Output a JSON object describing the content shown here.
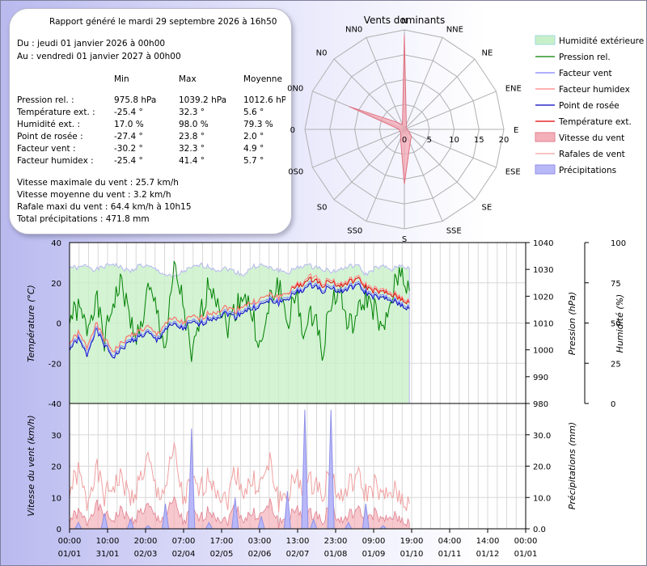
{
  "report": {
    "title": "Rapport généré le mardi 29 septembre 2026 à 16h50",
    "period_from": "Du : jeudi 01 janvier 2026 à 00h00",
    "period_to": "Au : vendredi 01 janvier 2027 à 00h00",
    "stat_headers": [
      "Min",
      "Max",
      "Moyenne"
    ],
    "stats": [
      {
        "label": "Pression rel. :",
        "min": "975.8 hPa",
        "max": "1039.2 hPa",
        "avg": "1012.6 hPa"
      },
      {
        "label": "Température ext. :",
        "min": "-25.4 °",
        "max": "32.3 °",
        "avg": "5.6 °"
      },
      {
        "label": "Humidité ext. :",
        "min": "17.0 %",
        "max": "98.0 %",
        "avg": "79.3 %"
      },
      {
        "label": "Point de rosée :",
        "min": "-27.4 °",
        "max": "23.8 °",
        "avg": "2.0 °"
      },
      {
        "label": "Facteur vent :",
        "min": "-30.2 °",
        "max": "32.3 °",
        "avg": "4.9 °"
      },
      {
        "label": "Facteur humidex :",
        "min": "-25.4 °",
        "max": "41.4 °",
        "avg": "5.7 °"
      }
    ],
    "wind_lines": [
      "Vitesse maximale du vent : 25.7 km/h",
      "Vitesse moyenne du vent : 3.2 km/h",
      "Rafale maxi du vent : 64.4 km/h à 10h15",
      "Total précipitations : 471.8 mm"
    ]
  },
  "legend": [
    {
      "label": "Humidité extérieure",
      "kind": "area",
      "color": "#c8f0c8",
      "stroke": "#a0d8e0"
    },
    {
      "label": "Pression rel.",
      "kind": "line",
      "color": "#008000"
    },
    {
      "label": "Facteur vent",
      "kind": "line",
      "color": "#8080ff"
    },
    {
      "label": "Facteur humidex",
      "kind": "line",
      "color": "#ff8080"
    },
    {
      "label": "Point de rosée",
      "kind": "line",
      "color": "#0000c0"
    },
    {
      "label": "Température ext.",
      "kind": "line",
      "color": "#e00000"
    },
    {
      "label": "Vitesse du vent",
      "kind": "area",
      "color": "#f4b0b8",
      "stroke": "#e08090"
    },
    {
      "label": "Rafales de vent",
      "kind": "line",
      "color": "#f0a0a0"
    },
    {
      "label": "Précipitations",
      "kind": "area",
      "color": "#b8b8f8",
      "stroke": "#9090e8"
    }
  ],
  "chart_data": [
    {
      "type": "radar",
      "title": "Vents dominants",
      "directions": [
        "N",
        "NNE",
        "NE",
        "ENE",
        "E",
        "ESE",
        "SE",
        "SSE",
        "S",
        "SS0",
        "S0",
        "0S0",
        "0",
        "0N0",
        "N0",
        "NN0"
      ],
      "rlim": [
        0,
        20
      ],
      "rticks": [
        "0",
        "5",
        "10",
        "15",
        "20"
      ],
      "values": [
        19,
        1,
        0.5,
        0.5,
        0.5,
        1,
        2,
        3,
        11,
        2,
        1,
        1,
        1,
        12,
        2,
        1
      ]
    },
    {
      "type": "line",
      "x_tick_times": [
        "00:00",
        "10:00",
        "20:00",
        "07:00",
        "17:00",
        "03:00",
        "13:00",
        "23:00",
        "09:00",
        "19:00",
        "04:00",
        "14:00",
        "00:00"
      ],
      "x_tick_dates": [
        "01/01",
        "31/01",
        "02/03",
        "02/04",
        "02/05",
        "02/06",
        "02/07",
        "01/08",
        "01/09",
        "01/10",
        "01/11",
        "01/12",
        "01/01"
      ],
      "ylabel_left": "Température (°C)",
      "ylim_left": [
        -40,
        40
      ],
      "yticks_left": [
        "-40",
        "-20",
        "0",
        "20",
        "40"
      ],
      "ylabel_right1": "Pression (hPa)",
      "ylim_right1": [
        980,
        1040
      ],
      "yticks_right1": [
        "980",
        "990",
        "1000",
        "1010",
        "1020",
        "1030",
        "1040"
      ],
      "ylabel_right2": "Humidité (%)",
      "ylim_right2": [
        0,
        100
      ],
      "yticks_right2": [
        "0",
        "25",
        "50",
        "75",
        "100"
      ],
      "x_data_fraction": 0.745,
      "series": [
        {
          "name": "Humidité extérieure",
          "axis": "right2",
          "values": [
            85,
            84,
            86,
            83,
            85,
            87,
            84,
            82,
            86,
            85,
            83,
            80,
            78,
            82,
            84,
            86,
            85,
            83,
            84,
            82,
            80,
            85,
            86,
            84,
            83,
            81,
            84,
            86,
            85,
            84,
            82,
            83,
            85,
            86,
            80,
            84,
            85,
            83,
            86,
            84
          ]
        },
        {
          "name": "Pression rel.",
          "axis": "right1",
          "values": [
            1012,
            1015,
            1008,
            1020,
            1003,
            1018,
            1025,
            1010,
            1005,
            1022,
            1015,
            1000,
            1030,
            1018,
            995,
            1012,
            1025,
            1020,
            1008,
            1015,
            1022,
            1012,
            1000,
            1018,
            1025,
            1010,
            1020,
            1005,
            1015,
            1000,
            1018,
            1022,
            1008,
            1012,
            1020,
            1015,
            1005,
            1020,
            1030,
            1022
          ]
        },
        {
          "name": "Température ext.",
          "axis": "left",
          "values": [
            -10,
            -5,
            -12,
            0,
            -8,
            -14,
            -10,
            -6,
            -4,
            -2,
            -6,
            0,
            2,
            0,
            3,
            2,
            5,
            6,
            8,
            6,
            9,
            10,
            12,
            14,
            13,
            15,
            18,
            20,
            22,
            19,
            21,
            18,
            20,
            22,
            18,
            16,
            15,
            14,
            12,
            10
          ]
        },
        {
          "name": "Point de rosée",
          "axis": "left",
          "values": [
            -13,
            -8,
            -16,
            -3,
            -11,
            -17,
            -13,
            -9,
            -7,
            -5,
            -9,
            -3,
            -1,
            -3,
            0,
            -1,
            2,
            3,
            5,
            3,
            6,
            7,
            9,
            11,
            10,
            12,
            15,
            17,
            19,
            16,
            18,
            15,
            17,
            19,
            15,
            13,
            12,
            11,
            9,
            7
          ]
        },
        {
          "name": "Facteur vent",
          "axis": "left",
          "values": [
            -12,
            -7,
            -15,
            -2,
            -10,
            -16,
            -12,
            -8,
            -6,
            -4,
            -8,
            -2,
            0,
            -2,
            1,
            0,
            3,
            4,
            6,
            4,
            7,
            8,
            10,
            12,
            11,
            13,
            16,
            18,
            20,
            17,
            19,
            16,
            18,
            20,
            16,
            14,
            13,
            12,
            10,
            8
          ]
        },
        {
          "name": "Facteur humidex",
          "axis": "left",
          "values": [
            -10,
            -5,
            -12,
            0,
            -8,
            -14,
            -10,
            -6,
            -4,
            -2,
            -6,
            0,
            2,
            0,
            3,
            2,
            5,
            6,
            8,
            6,
            9,
            10,
            12,
            14,
            13,
            15,
            19,
            21,
            24,
            20,
            22,
            19,
            21,
            23,
            19,
            17,
            16,
            15,
            13,
            11
          ]
        }
      ]
    },
    {
      "type": "area",
      "ylabel_left": "Vitesse du vent (km/h)",
      "ylim_left": [
        0,
        40
      ],
      "yticks_left": [
        "0",
        "10",
        "20",
        "30"
      ],
      "ylabel_right": "Précipitations (mm)",
      "ylim_right": [
        0,
        40
      ],
      "yticks_right": [
        "0.0",
        "10.0",
        "20.0",
        "30.0"
      ],
      "x_data_fraction": 0.745,
      "series": [
        {
          "name": "Vitesse du vent",
          "axis": "left",
          "values": [
            3,
            5,
            2,
            8,
            4,
            3,
            6,
            2,
            5,
            7,
            3,
            4,
            9,
            2,
            5,
            3,
            6,
            4,
            2,
            7,
            3,
            5,
            4,
            8,
            2,
            3,
            6,
            4,
            5,
            3,
            7,
            2,
            4,
            6,
            3,
            5,
            2,
            4,
            3,
            2
          ]
        },
        {
          "name": "Rafales de vent",
          "axis": "left",
          "values": [
            12,
            18,
            8,
            20,
            10,
            14,
            16,
            9,
            15,
            22,
            11,
            13,
            25,
            9,
            14,
            12,
            17,
            13,
            8,
            19,
            12,
            15,
            14,
            21,
            9,
            11,
            16,
            13,
            15,
            12,
            18,
            9,
            13,
            17,
            11,
            14,
            9,
            12,
            10,
            8
          ]
        },
        {
          "name": "Précipitations",
          "axis": "right",
          "values": [
            0,
            2,
            0,
            0,
            5,
            0,
            0,
            3,
            0,
            1,
            0,
            8,
            0,
            0,
            32,
            0,
            2,
            0,
            0,
            10,
            0,
            0,
            4,
            0,
            0,
            12,
            0,
            38,
            3,
            0,
            38,
            0,
            2,
            0,
            8,
            0,
            1,
            0,
            0,
            0
          ]
        }
      ]
    }
  ]
}
